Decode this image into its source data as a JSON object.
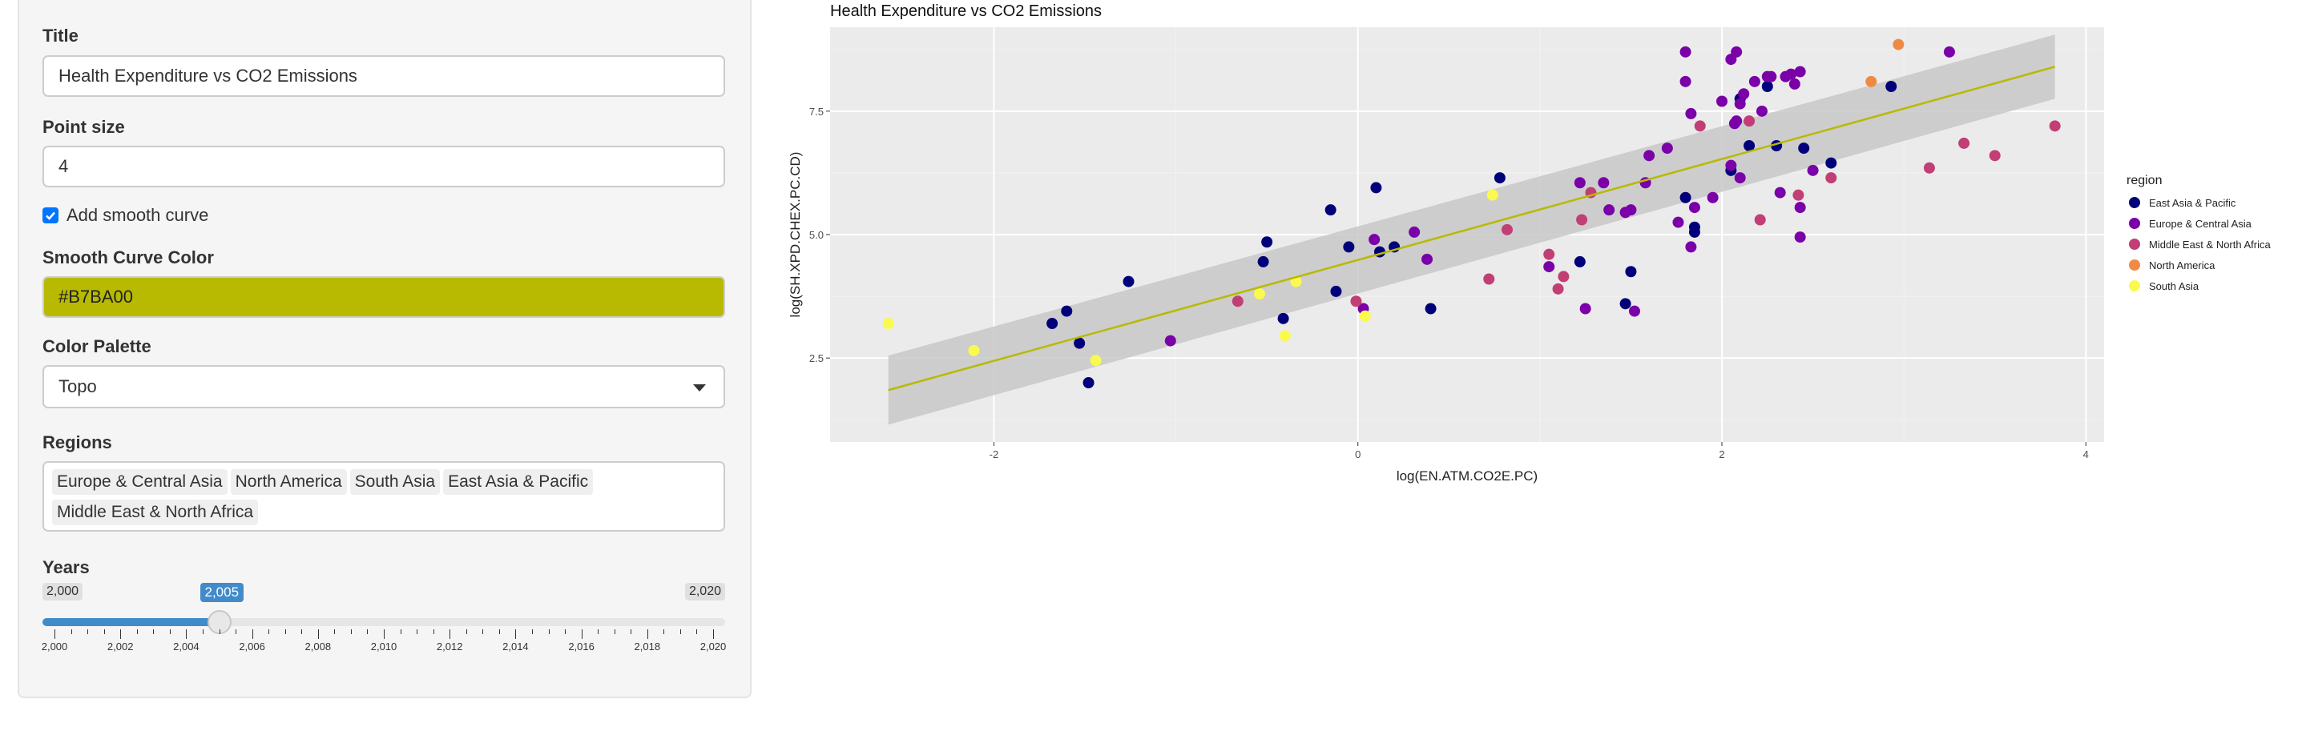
{
  "sidebar": {
    "title_label": "Title",
    "title_value": "Health Expenditure vs CO2 Emissions",
    "point_size_label": "Point size",
    "point_size_value": "4",
    "smooth_checkbox_label": "Add smooth curve",
    "smooth_checked": true,
    "smooth_color_label": "Smooth Curve Color",
    "smooth_color_value": "#B7BA00",
    "palette_label": "Color Palette",
    "palette_value": "Topo",
    "regions_label": "Regions",
    "regions_selected": [
      "Europe & Central Asia",
      "North America",
      "South Asia",
      "East Asia & Pacific",
      "Middle East & North Africa"
    ],
    "years_label": "Years",
    "years_min": "2,000",
    "years_max": "2,020",
    "years_current": "2,005",
    "years_value": 2005,
    "year_ticks": [
      "2,000",
      "2,002",
      "2,004",
      "2,006",
      "2,008",
      "2,010",
      "2,012",
      "2,014",
      "2,016",
      "2,018",
      "2,020"
    ]
  },
  "colors": {
    "accent": "#428bca",
    "smooth": "#B7BA00",
    "panel_bg": "#ebebeb",
    "ribbon": "#c8c8c8"
  },
  "chart_data": {
    "type": "scatter",
    "title": "Health Expenditure vs CO2 Emissions",
    "xlabel": "log(EN.ATM.CO2E.PC)",
    "ylabel": "log(SH.XPD.CHEX.PC.CD)",
    "xlim": [
      -2.9,
      4.1
    ],
    "ylim": [
      0.8,
      9.2
    ],
    "xticks": [
      -2,
      0,
      2,
      4
    ],
    "yticks": [
      2.5,
      5.0,
      7.5
    ],
    "grid": true,
    "legend_title": "region",
    "legend_position": "right",
    "series": [
      {
        "name": "East Asia & Pacific",
        "color": "#00007a",
        "points": [
          [
            -1.68,
            3.2
          ],
          [
            -1.6,
            3.45
          ],
          [
            -1.53,
            2.8
          ],
          [
            -1.48,
            2.0
          ],
          [
            -1.26,
            4.05
          ],
          [
            -0.5,
            4.85
          ],
          [
            -0.52,
            4.45
          ],
          [
            -0.41,
            3.3
          ],
          [
            -0.15,
            5.5
          ],
          [
            -0.05,
            4.75
          ],
          [
            0.1,
            5.95
          ],
          [
            0.12,
            4.65
          ],
          [
            0.2,
            4.75
          ],
          [
            0.4,
            3.5
          ],
          [
            0.78,
            6.15
          ],
          [
            -0.12,
            3.85
          ],
          [
            1.22,
            4.45
          ],
          [
            1.47,
            3.6
          ],
          [
            1.5,
            4.25
          ],
          [
            1.8,
            5.75
          ],
          [
            1.85,
            5.05
          ],
          [
            1.85,
            5.15
          ],
          [
            2.05,
            6.3
          ],
          [
            2.1,
            7.75
          ],
          [
            2.15,
            6.8
          ],
          [
            2.25,
            8.0
          ],
          [
            2.3,
            6.8
          ],
          [
            2.45,
            6.75
          ],
          [
            2.6,
            6.45
          ],
          [
            2.93,
            8.0
          ]
        ]
      },
      {
        "name": "Europe & Central Asia",
        "color": "#7a00a8",
        "points": [
          [
            -1.03,
            2.85
          ],
          [
            0.03,
            3.5
          ],
          [
            0.09,
            4.9
          ],
          [
            0.31,
            5.05
          ],
          [
            0.38,
            4.5
          ],
          [
            1.05,
            4.35
          ],
          [
            1.22,
            6.05
          ],
          [
            1.25,
            3.5
          ],
          [
            1.35,
            6.05
          ],
          [
            1.38,
            5.5
          ],
          [
            1.47,
            5.45
          ],
          [
            1.5,
            5.5
          ],
          [
            1.52,
            3.45
          ],
          [
            1.58,
            6.05
          ],
          [
            1.6,
            6.6
          ],
          [
            1.7,
            6.75
          ],
          [
            1.76,
            5.25
          ],
          [
            1.8,
            8.1
          ],
          [
            1.8,
            8.7
          ],
          [
            1.83,
            7.45
          ],
          [
            1.83,
            4.75
          ],
          [
            1.85,
            5.55
          ],
          [
            1.95,
            5.75
          ],
          [
            2.0,
            7.7
          ],
          [
            2.05,
            6.4
          ],
          [
            2.05,
            8.55
          ],
          [
            2.07,
            7.25
          ],
          [
            2.08,
            7.3
          ],
          [
            2.08,
            8.7
          ],
          [
            2.1,
            6.15
          ],
          [
            2.1,
            7.65
          ],
          [
            2.12,
            7.85
          ],
          [
            2.18,
            8.1
          ],
          [
            2.22,
            7.5
          ],
          [
            2.25,
            8.2
          ],
          [
            2.27,
            8.2
          ],
          [
            2.32,
            5.85
          ],
          [
            2.35,
            8.2
          ],
          [
            2.38,
            8.25
          ],
          [
            2.4,
            8.05
          ],
          [
            2.43,
            5.55
          ],
          [
            2.43,
            4.95
          ],
          [
            2.43,
            8.3
          ],
          [
            2.5,
            6.3
          ],
          [
            3.25,
            8.7
          ]
        ]
      },
      {
        "name": "Middle East & North Africa",
        "color": "#c13f75",
        "points": [
          [
            -0.66,
            3.65
          ],
          [
            -0.01,
            3.65
          ],
          [
            0.82,
            5.1
          ],
          [
            0.72,
            4.1
          ],
          [
            1.05,
            4.6
          ],
          [
            1.1,
            3.9
          ],
          [
            1.13,
            4.15
          ],
          [
            1.23,
            5.3
          ],
          [
            1.28,
            5.85
          ],
          [
            1.88,
            7.2
          ],
          [
            2.15,
            7.3
          ],
          [
            2.21,
            5.3
          ],
          [
            2.42,
            5.8
          ],
          [
            2.6,
            6.15
          ],
          [
            3.14,
            6.35
          ],
          [
            3.33,
            6.85
          ],
          [
            3.5,
            6.6
          ],
          [
            3.83,
            7.2
          ]
        ]
      },
      {
        "name": "North America",
        "color": "#f08a43",
        "points": [
          [
            2.82,
            8.1
          ],
          [
            2.97,
            8.85
          ]
        ]
      },
      {
        "name": "South Asia",
        "color": "#fafa4e",
        "points": [
          [
            -2.58,
            3.2
          ],
          [
            -2.11,
            2.65
          ],
          [
            -1.44,
            2.45
          ],
          [
            -0.54,
            3.8
          ],
          [
            -0.4,
            2.95
          ],
          [
            -0.34,
            4.05
          ],
          [
            0.04,
            3.35
          ],
          [
            0.74,
            5.8
          ]
        ]
      }
    ],
    "smooth_line": {
      "x": [
        -2.58,
        3.83
      ],
      "y": [
        1.85,
        8.4
      ]
    },
    "ribbon": {
      "x": [
        -2.58,
        3.83
      ],
      "upper": [
        2.55,
        9.05
      ],
      "lower": [
        1.15,
        7.75
      ]
    }
  }
}
